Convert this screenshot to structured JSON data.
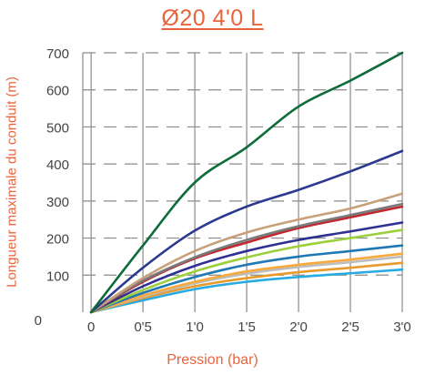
{
  "chart_data": {
    "type": "line",
    "title": "Ø20 4'0 L",
    "xlabel": "Pression  (bar)",
    "ylabel": "Longueur maximale du conduit  (m)",
    "x": [
      0,
      0.5,
      1.0,
      1.5,
      2.0,
      2.5,
      3.0
    ],
    "x_tick_labels": [
      "0",
      "0'5",
      "1'0",
      "1'5",
      "2'0",
      "2'5",
      "3'0"
    ],
    "y_ticks": [
      0,
      100,
      200,
      300,
      400,
      500,
      600,
      700
    ],
    "xlim": [
      -0.08,
      3.0
    ],
    "ylim": [
      0,
      700
    ],
    "grid": "dashed horizontal, solid vertical",
    "series": [
      {
        "color": "#0e6b3a",
        "values": [
          0,
          180,
          350,
          445,
          555,
          625,
          700
        ]
      },
      {
        "color": "#2b3990",
        "values": [
          0,
          120,
          220,
          285,
          330,
          380,
          435
        ]
      },
      {
        "color": "#c8a07a",
        "values": [
          0,
          92,
          165,
          215,
          250,
          280,
          320
        ]
      },
      {
        "color": "#7a7a7a",
        "values": [
          0,
          85,
          148,
          195,
          232,
          262,
          292
        ]
      },
      {
        "color": "#c1272d",
        "values": [
          0,
          82,
          145,
          188,
          227,
          256,
          285
        ]
      },
      {
        "color": "#2e3192",
        "values": [
          0,
          70,
          125,
          165,
          195,
          218,
          242
        ]
      },
      {
        "color": "#9ccf3c",
        "values": [
          0,
          60,
          110,
          148,
          178,
          200,
          222
        ]
      },
      {
        "color": "#1f78b4",
        "values": [
          0,
          52,
          95,
          128,
          150,
          165,
          180
        ]
      },
      {
        "color": "#f7a93b",
        "values": [
          0,
          45,
          82,
          110,
          128,
          142,
          158
        ]
      },
      {
        "color": "#bdbdbd",
        "values": [
          0,
          42,
          78,
          104,
          122,
          135,
          150
        ]
      },
      {
        "color": "#e89a2d",
        "values": [
          0,
          38,
          70,
          92,
          108,
          120,
          133
        ]
      },
      {
        "color": "#29abe2",
        "values": [
          0,
          32,
          62,
          82,
          95,
          105,
          115
        ]
      }
    ]
  }
}
